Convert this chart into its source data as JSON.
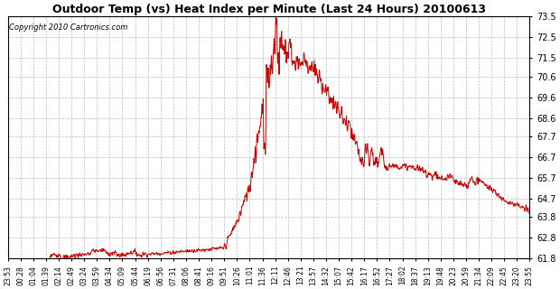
{
  "title": "Outdoor Temp (vs) Heat Index per Minute (Last 24 Hours) 20100613",
  "copyright": "Copyright 2010 Cartronics.com",
  "line_color": "#cc0000",
  "background_color": "#ffffff",
  "grid_color": "#aaaaaa",
  "ylim": [
    61.8,
    73.5
  ],
  "yticks": [
    61.8,
    62.8,
    63.8,
    64.7,
    65.7,
    66.7,
    67.7,
    68.6,
    69.6,
    70.6,
    71.5,
    72.5,
    73.5
  ],
  "x_labels": [
    "23:53",
    "00:28",
    "01:04",
    "01:39",
    "02:14",
    "02:49",
    "03:24",
    "03:59",
    "04:34",
    "05:09",
    "05:44",
    "06:19",
    "06:56",
    "07:31",
    "08:06",
    "08:41",
    "09:16",
    "09:51",
    "10:26",
    "11:01",
    "11:36",
    "12:11",
    "12:46",
    "13:21",
    "13:57",
    "14:32",
    "15:07",
    "15:42",
    "16:17",
    "16:52",
    "17:27",
    "18:02",
    "18:37",
    "19:13",
    "19:48",
    "20:23",
    "20:59",
    "21:34",
    "22:09",
    "22:45",
    "23:20",
    "23:55"
  ]
}
